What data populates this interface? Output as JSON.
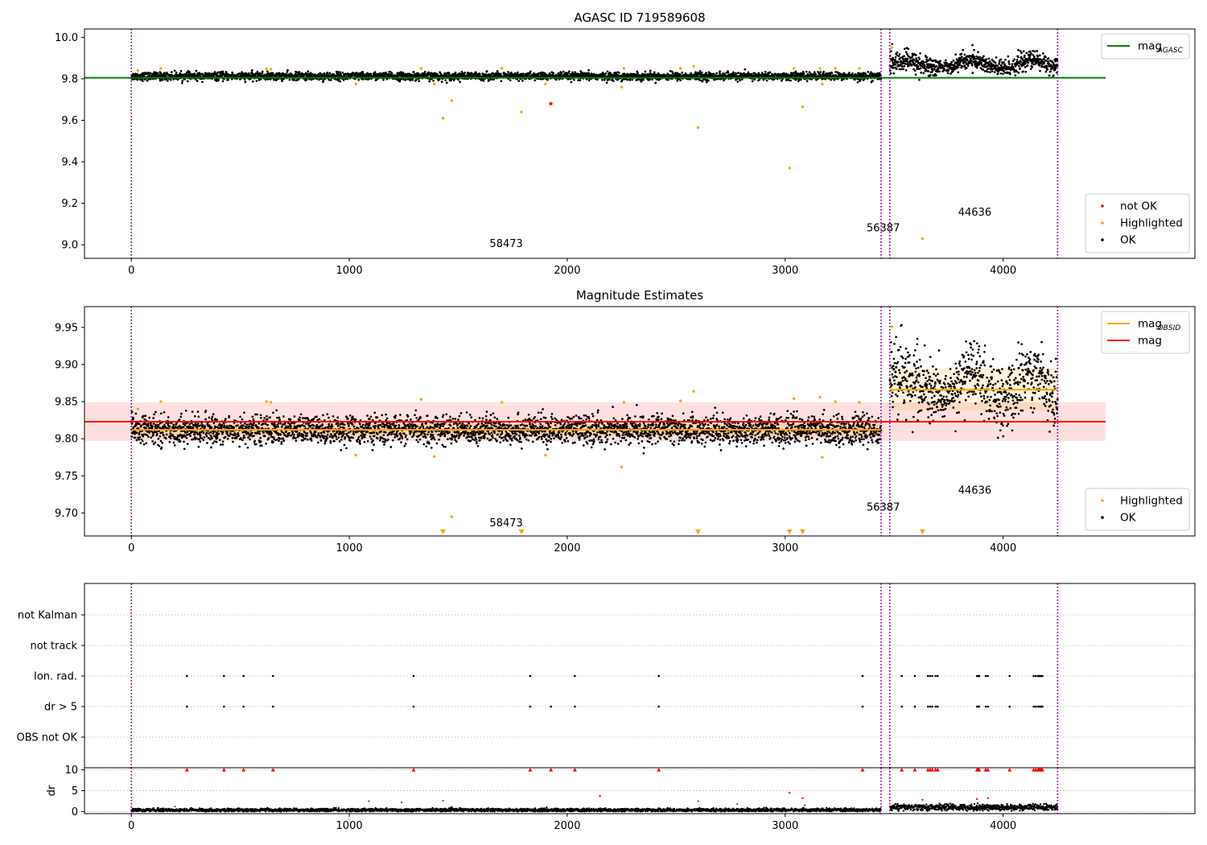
{
  "chart_data": [
    {
      "type": "scatter",
      "title": "AGASC ID 719589608",
      "xlabel": "",
      "ylabel": "",
      "xlim": [
        -215,
        4880
      ],
      "ylim": [
        8.935,
        10.04
      ],
      "xticks": [
        0,
        1000,
        2000,
        3000,
        4000
      ],
      "yticks": [
        9.0,
        9.2,
        9.4,
        9.6,
        9.8,
        10.0
      ],
      "ytick_labels": [
        "9.0",
        "9.2",
        "9.4",
        "9.6",
        "9.8",
        "10.0"
      ],
      "grid": false,
      "vlines": [
        0,
        3440,
        3480,
        4250
      ],
      "vline_color": "#800080",
      "hlines": [
        {
          "name": "mag",
          "sub": "AGASC",
          "y": 9.805,
          "x": [
            -215,
            4470
          ],
          "color": "#008000"
        }
      ],
      "ok_segments": [
        {
          "x": [
            0,
            3440
          ],
          "y_mean": 9.812,
          "y_spread": 0.017
        },
        {
          "x": [
            3480,
            3700
          ],
          "y_mean": 9.87,
          "y_spread": 0.045,
          "wave": 0.015
        },
        {
          "x": [
            3700,
            3780
          ],
          "y_mean": 9.86,
          "y_spread": 0.025
        },
        {
          "x": [
            3780,
            4250
          ],
          "y_mean": 9.87,
          "y_spread": 0.04,
          "wave": 0.02
        }
      ],
      "ok_color": "#000000",
      "highlighted": {
        "x": [
          30,
          135,
          620,
          640,
          1030,
          1330,
          1390,
          1430,
          1470,
          1700,
          1790,
          1900,
          2250,
          2260,
          2520,
          2580,
          2600,
          3020,
          3040,
          3080,
          3160,
          3170,
          3230,
          3340,
          3490,
          3630
        ],
        "y": [
          9.84,
          9.85,
          9.848,
          9.846,
          9.775,
          9.85,
          9.775,
          9.61,
          9.695,
          9.85,
          9.64,
          9.775,
          9.76,
          9.85,
          9.85,
          9.86,
          9.565,
          9.37,
          9.85,
          9.665,
          9.85,
          9.775,
          9.85,
          9.85,
          9.95,
          9.03
        ],
        "color": "#ffa500"
      },
      "not_ok": {
        "x": [
          1925
        ],
        "y": [
          9.68
        ],
        "color": "#ff0000"
      },
      "annotations": [
        {
          "text": "58473",
          "x": 1720,
          "y": 8.99
        },
        {
          "text": "56387",
          "x": 3450,
          "y": 9.065
        },
        {
          "text": "44636",
          "x": 3870,
          "y": 9.14
        }
      ],
      "legends": [
        {
          "placement": "upper-right",
          "items": [
            {
              "label": "mag",
              "sub": "AGASC",
              "kind": "line",
              "color": "#008000"
            }
          ]
        },
        {
          "placement": "lower-right",
          "items": [
            {
              "label": "not OK",
              "kind": "dot",
              "color": "#ff0000"
            },
            {
              "label": "Highlighted",
              "kind": "dot",
              "color": "#ffa500"
            },
            {
              "label": "OK",
              "kind": "dot",
              "color": "#000000"
            }
          ]
        }
      ]
    },
    {
      "type": "scatter",
      "title": "Magnitude Estimates",
      "xlabel": "",
      "ylabel": "",
      "xlim": [
        -215,
        4880
      ],
      "ylim": [
        9.669,
        9.978
      ],
      "xticks": [
        0,
        1000,
        2000,
        3000,
        4000
      ],
      "yticks": [
        9.7,
        9.75,
        9.8,
        9.85,
        9.9,
        9.95
      ],
      "ytick_labels": [
        "9.70",
        "9.75",
        "9.80",
        "9.85",
        "9.90",
        "9.95"
      ],
      "grid": false,
      "vlines": [
        0,
        3440,
        3480,
        4250
      ],
      "vline_color": "#800080",
      "bands": [
        {
          "x": [
            -215,
            4470
          ],
          "y": [
            9.797,
            9.849
          ],
          "color": "#ff0000",
          "opacity": 0.12
        },
        {
          "x": [
            0,
            3440
          ],
          "y": [
            9.804,
            9.82
          ],
          "color": "#ffa500",
          "opacity": 0.22
        },
        {
          "x": [
            3480,
            4250
          ],
          "y": [
            9.838,
            9.895
          ],
          "color": "#ffa500",
          "opacity": 0.12
        }
      ],
      "hlines": [
        {
          "name": "mag",
          "y": 9.823,
          "x": [
            -215,
            4470
          ],
          "color": "#ff0000"
        },
        {
          "name": "mag",
          "sub": "OBSID",
          "y": 9.812,
          "x": [
            0,
            3440
          ],
          "color": "#ffa500"
        },
        {
          "name": "mag",
          "sub": "OBSID",
          "y": 9.866,
          "x": [
            3480,
            4250
          ],
          "color": "#ffa500"
        }
      ],
      "ok_segments": [
        {
          "x": [
            0,
            3440
          ],
          "y_mean": 9.812,
          "y_spread": 0.017
        },
        {
          "x": [
            3480,
            3700
          ],
          "y_mean": 9.87,
          "y_spread": 0.045,
          "wave": 0.015
        },
        {
          "x": [
            3700,
            3780
          ],
          "y_mean": 9.86,
          "y_spread": 0.025
        },
        {
          "x": [
            3780,
            4250
          ],
          "y_mean": 9.87,
          "y_spread": 0.04,
          "wave": 0.02
        }
      ],
      "ok_color": "#000000",
      "highlighted": {
        "x": [
          30,
          135,
          620,
          640,
          1030,
          1330,
          1390,
          1470,
          1700,
          1900,
          2250,
          2260,
          2520,
          2580,
          3040,
          3160,
          3170,
          3230,
          3340,
          3490
        ],
        "y": [
          9.84,
          9.85,
          9.85,
          9.849,
          9.778,
          9.853,
          9.776,
          9.695,
          9.849,
          9.778,
          9.762,
          9.849,
          9.851,
          9.864,
          9.854,
          9.856,
          9.775,
          9.85,
          9.849,
          9.951
        ],
        "color": "#ffa500"
      },
      "below_range_markers": {
        "x": [
          1430,
          1790,
          2600,
          3020,
          3080,
          3630
        ],
        "color": "#ffa500"
      },
      "annotations": [
        {
          "text": "58473",
          "x": 1720,
          "y": 9.682
        },
        {
          "text": "56387",
          "x": 3450,
          "y": 9.703
        },
        {
          "text": "44636",
          "x": 3870,
          "y": 9.726
        }
      ],
      "legends": [
        {
          "placement": "upper-right",
          "items": [
            {
              "label": "mag",
              "sub": "OBSID",
              "kind": "line",
              "color": "#ffa500"
            },
            {
              "label": "mag",
              "kind": "line",
              "color": "#ff0000"
            }
          ]
        },
        {
          "placement": "lower-right",
          "items": [
            {
              "label": "Highlighted",
              "kind": "dot",
              "color": "#ffa500"
            },
            {
              "label": "OK",
              "kind": "dot",
              "color": "#000000"
            }
          ]
        }
      ]
    },
    {
      "type": "scatter",
      "title": "",
      "xlabel": "",
      "ylabel": "",
      "xlim": [
        -215,
        4880
      ],
      "categories": [
        "not Kalman",
        "not track",
        "Ion. rad.",
        "dr > 5",
        "OBS not OK"
      ],
      "grid": true,
      "vlines": [
        0,
        3440,
        3480,
        4250
      ],
      "vline_color": "#800080",
      "flag_points": {
        "Ion. rad.": [
          255,
          425,
          515,
          650,
          1295,
          1830,
          2035,
          2420,
          3355,
          3535,
          3595,
          3655,
          3665,
          3675,
          3690,
          3700,
          3880,
          3885,
          3890,
          3920,
          3930,
          4030,
          4140,
          4150,
          4160,
          4165,
          4170,
          4175,
          4180
        ],
        "dr > 5": [
          255,
          425,
          515,
          650,
          1295,
          1830,
          1925,
          2035,
          2420,
          3355,
          3535,
          3595,
          3655,
          3665,
          3675,
          3690,
          3700,
          3880,
          3885,
          3890,
          3920,
          3930,
          4030,
          4140,
          4150,
          4160,
          4165,
          4170,
          4175,
          4180
        ]
      },
      "point_color": "#000000"
    },
    {
      "type": "scatter",
      "title": "",
      "xlabel": "",
      "ylabel": "dr",
      "xlim": [
        -215,
        4880
      ],
      "ylim": [
        -0.5,
        10.5
      ],
      "xticks": [
        0,
        1000,
        2000,
        3000,
        4000
      ],
      "yticks": [
        0,
        5,
        10
      ],
      "ytick_labels": [
        "0",
        "5",
        "10"
      ],
      "grid": true,
      "vlines": [
        0,
        3440,
        3480,
        4250
      ],
      "vline_color": "#800080",
      "dr_segments": [
        {
          "x": [
            0,
            3440
          ],
          "mean": 0.35,
          "spread": 0.3
        },
        {
          "x": [
            3480,
            4250
          ],
          "mean": 1.0,
          "spread": 0.6
        }
      ],
      "clipped_at_10": [
        255,
        425,
        515,
        650,
        1295,
        1830,
        1925,
        2035,
        2420,
        3355,
        3535,
        3595,
        3655,
        3665,
        3675,
        3690,
        3700,
        3880,
        3885,
        3890,
        3920,
        3930,
        4030,
        4140,
        4150,
        4160,
        4165,
        4170,
        4175,
        4180
      ],
      "red_points": {
        "x": [
          2150,
          3020,
          3080,
          3630,
          3880,
          3930
        ],
        "y": [
          3.7,
          4.5,
          3.2,
          2.8,
          3.0,
          3.2
        ]
      },
      "gray_points": {
        "x": [
          200,
          1090,
          1240,
          1430,
          2600,
          2780,
          3090
        ],
        "y": [
          1.2,
          2.5,
          2.2,
          2.6,
          2.5,
          1.8,
          1.5
        ]
      }
    }
  ]
}
